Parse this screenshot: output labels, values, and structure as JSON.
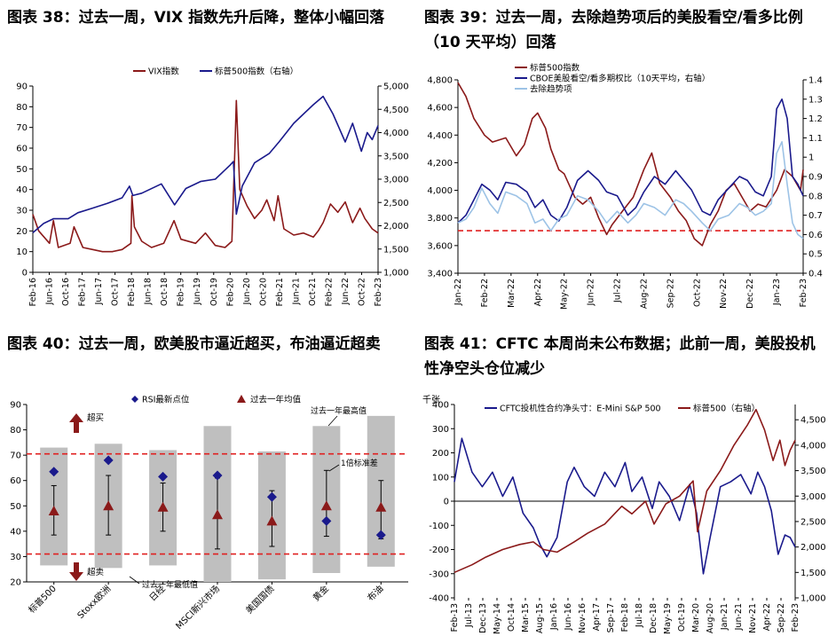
{
  "colors": {
    "red": "#8b1a1a",
    "navy": "#1a1a8c",
    "lightblue": "#9dc3e6",
    "dash": "#e02020",
    "gray": "#bfbfbf"
  },
  "panels": [
    {
      "title_lines": [
        "图表 38：过去一周，VIX 指数先升后降，整体小幅回落"
      ],
      "chart_data": {
        "type": "line",
        "legend": {
          "placement": "top-center",
          "entries": [
            "VIX指数",
            "标普500指数（右轴）"
          ]
        },
        "left_axis": {
          "ticks": [
            "0",
            "10",
            "20",
            "30",
            "40",
            "50",
            "60",
            "70",
            "80",
            "90"
          ],
          "range": [
            0,
            90
          ]
        },
        "right_axis": {
          "ticks": [
            "1,000",
            "1,500",
            "2,000",
            "2,500",
            "3,000",
            "3,500",
            "4,000",
            "4,500",
            "5,000"
          ],
          "range": [
            1000,
            5000
          ]
        },
        "x_ticks": [
          "Feb-16",
          "Jun-16",
          "Oct-16",
          "Feb-17",
          "Jun-17",
          "Oct-17",
          "Feb-18",
          "Jun-18",
          "Oct-18",
          "Feb-19",
          "Jun-19",
          "Oct-19",
          "Feb-20",
          "Jun-20",
          "Oct-20",
          "Feb-21",
          "Jun-21",
          "Oct-21",
          "Feb-22",
          "Jun-22",
          "Oct-22",
          "Feb-23"
        ],
        "x_range": [
          2016.08,
          2023.12
        ],
        "series": [
          {
            "name": "VIX指数",
            "axis": "left",
            "color": "red",
            "x": [
              2016.08,
              2016.2,
              2016.42,
              2016.5,
              2016.6,
              2016.84,
              2016.92,
              2017.1,
              2017.3,
              2017.5,
              2017.7,
              2017.9,
              2018.08,
              2018.1,
              2018.15,
              2018.3,
              2018.5,
              2018.75,
              2018.96,
              2019.1,
              2019.4,
              2019.6,
              2019.8,
              2020.0,
              2020.14,
              2020.2,
              2020.23,
              2020.3,
              2020.45,
              2020.6,
              2020.75,
              2020.85,
              2021.0,
              2021.08,
              2021.2,
              2021.4,
              2021.6,
              2021.8,
              2021.9,
              2022.0,
              2022.15,
              2022.3,
              2022.45,
              2022.6,
              2022.75,
              2022.85,
              2023.0,
              2023.12
            ],
            "y": [
              28,
              20,
              14,
              25,
              12,
              14,
              22,
              12,
              11,
              10,
              10,
              11,
              14,
              37,
              22,
              15,
              12,
              14,
              25,
              16,
              14,
              19,
              13,
              12,
              15,
              60,
              83,
              40,
              32,
              26,
              30,
              35,
              25,
              37,
              21,
              18,
              19,
              17,
              20,
              24,
              33,
              29,
              34,
              24,
              31,
              26,
              21,
              19
            ]
          },
          {
            "name": "标普500指数（右轴）",
            "axis": "right",
            "color": "navy",
            "x": [
              2016.08,
              2016.3,
              2016.5,
              2016.8,
              2017.0,
              2017.3,
              2017.6,
              2017.9,
              2018.05,
              2018.12,
              2018.3,
              2018.7,
              2018.97,
              2019.2,
              2019.5,
              2019.8,
              2020.1,
              2020.17,
              2020.23,
              2020.35,
              2020.6,
              2020.9,
              2021.1,
              2021.4,
              2021.6,
              2021.8,
              2022.0,
              2022.2,
              2022.45,
              2022.6,
              2022.78,
              2022.9,
              2023.0,
              2023.12
            ],
            "y": [
              1850,
              2050,
              2150,
              2150,
              2280,
              2380,
              2480,
              2600,
              2850,
              2650,
              2700,
              2900,
              2450,
              2800,
              2950,
              3000,
              3300,
              3380,
              2250,
              2850,
              3350,
              3550,
              3800,
              4200,
              4400,
              4600,
              4780,
              4400,
              3800,
              4200,
              3600,
              4000,
              3850,
              4150
            ]
          }
        ]
      }
    },
    {
      "title_lines": [
        "图表 39：过去一周，去除趋势项后的美股看空/看多比例",
        "（10 天平均）回落"
      ],
      "chart_data": {
        "type": "line",
        "legend": {
          "placement": "top-left",
          "entries": [
            "标普500指数",
            "CBOE美股看空/看多期权比（10天平均，右轴）",
            "去除趋势项"
          ]
        },
        "left_axis": {
          "ticks": [
            "3,400",
            "3,600",
            "3,800",
            "4,000",
            "4,200",
            "4,400",
            "4,600",
            "4,800"
          ],
          "range": [
            3400,
            4800
          ]
        },
        "right_axis": {
          "ticks": [
            "0.4",
            "0.5",
            "0.6",
            "0.7",
            "0.8",
            "0.9",
            "1",
            "1.1",
            "1.2",
            "1.3",
            "1.4"
          ],
          "range": [
            0.4,
            1.4
          ]
        },
        "x_ticks": [
          "Jan-22",
          "Feb-22",
          "Mar-22",
          "Apr-22",
          "May-22",
          "Jun-22",
          "Jul-22",
          "Aug-22",
          "Sep-22",
          "Oct-22",
          "Nov-22",
          "Dec-22",
          "Jan-23",
          "Feb-23"
        ],
        "x_range": [
          0,
          13
        ],
        "threshold": {
          "axis": "right",
          "value": 0.62
        },
        "series": [
          {
            "name": "标普500指数",
            "axis": "left",
            "color": "red",
            "x": [
              0,
              0.3,
              0.6,
              1.0,
              1.3,
              1.8,
              2.2,
              2.5,
              2.8,
              3.0,
              3.3,
              3.5,
              3.8,
              4.0,
              4.4,
              4.7,
              5.0,
              5.3,
              5.6,
              5.8,
              6.2,
              6.6,
              7.0,
              7.3,
              7.6,
              8.0,
              8.3,
              8.6,
              8.9,
              9.2,
              9.5,
              9.8,
              10.1,
              10.4,
              10.7,
              11.0,
              11.3,
              11.6,
              12.0,
              12.3,
              12.6,
              12.9,
              13.0
            ],
            "y": [
              4780,
              4680,
              4520,
              4400,
              4350,
              4380,
              4250,
              4330,
              4520,
              4560,
              4450,
              4300,
              4150,
              4120,
              3950,
              3900,
              3950,
              3800,
              3680,
              3750,
              3850,
              3950,
              4150,
              4270,
              4050,
              3950,
              3850,
              3780,
              3650,
              3600,
              3750,
              3850,
              4000,
              4050,
              3950,
              3850,
              3900,
              3880,
              4000,
              4150,
              4100,
              4000,
              4150
            ]
          },
          {
            "name": "CBOE美股看空/看多期权比（10天平均，右轴）",
            "axis": "right",
            "color": "navy",
            "x": [
              0,
              0.3,
              0.6,
              0.9,
              1.2,
              1.5,
              1.8,
              2.2,
              2.6,
              2.9,
              3.2,
              3.5,
              3.8,
              4.1,
              4.5,
              4.9,
              5.3,
              5.6,
              6.0,
              6.4,
              6.7,
              7.0,
              7.4,
              7.8,
              8.2,
              8.5,
              8.8,
              9.2,
              9.5,
              9.8,
              10.2,
              10.6,
              10.9,
              11.2,
              11.5,
              11.8,
              12.0,
              12.2,
              12.4,
              12.6,
              12.8,
              13.0
            ],
            "y": [
              0.66,
              0.7,
              0.78,
              0.86,
              0.83,
              0.78,
              0.87,
              0.86,
              0.82,
              0.74,
              0.78,
              0.7,
              0.67,
              0.74,
              0.88,
              0.93,
              0.88,
              0.82,
              0.8,
              0.7,
              0.74,
              0.82,
              0.9,
              0.86,
              0.93,
              0.88,
              0.83,
              0.72,
              0.7,
              0.78,
              0.84,
              0.9,
              0.88,
              0.82,
              0.8,
              0.9,
              1.25,
              1.3,
              1.2,
              0.9,
              0.86,
              0.8
            ]
          },
          {
            "name": "去除趋势项",
            "axis": "right",
            "color": "lightblue",
            "x": [
              0,
              0.3,
              0.6,
              0.9,
              1.2,
              1.5,
              1.8,
              2.2,
              2.6,
              2.9,
              3.2,
              3.5,
              3.8,
              4.1,
              4.5,
              4.9,
              5.3,
              5.6,
              6.0,
              6.4,
              6.7,
              7.0,
              7.4,
              7.8,
              8.2,
              8.5,
              8.8,
              9.2,
              9.5,
              9.8,
              10.2,
              10.6,
              10.9,
              11.2,
              11.5,
              11.8,
              12.0,
              12.2,
              12.4,
              12.6,
              12.8,
              13.0
            ],
            "y": [
              0.66,
              0.68,
              0.74,
              0.84,
              0.76,
              0.71,
              0.82,
              0.8,
              0.76,
              0.66,
              0.68,
              0.62,
              0.68,
              0.7,
              0.8,
              0.78,
              0.72,
              0.66,
              0.72,
              0.66,
              0.7,
              0.76,
              0.74,
              0.7,
              0.78,
              0.76,
              0.72,
              0.66,
              0.62,
              0.68,
              0.7,
              0.76,
              0.74,
              0.7,
              0.72,
              0.76,
              1.02,
              1.08,
              0.86,
              0.66,
              0.6,
              0.58
            ]
          }
        ]
      }
    },
    {
      "title_lines": [
        "图表 40：过去一周，欧美股市逼近超买，布油逼近超卖"
      ],
      "chart_data": {
        "type": "range-dot",
        "legend": {
          "placement": "top-center",
          "entries": [
            "RSI最新点位",
            "过去一年均值"
          ]
        },
        "left_axis": {
          "ticks": [
            "20",
            "30",
            "40",
            "50",
            "60",
            "70",
            "80",
            "90"
          ],
          "range": [
            20,
            90
          ]
        },
        "categories": [
          "标普500",
          "Stoxx欧洲",
          "日经",
          "MSCI新兴市场",
          "美国国债",
          "黄金",
          "布油"
        ],
        "bands": [
          [
            26.5,
            73
          ],
          [
            25.5,
            74.5
          ],
          [
            26.5,
            72
          ],
          [
            20,
            81.5
          ],
          [
            21,
            71.5
          ],
          [
            23.5,
            81.5
          ],
          [
            26,
            85.5
          ]
        ],
        "rsi_latest": [
          63.5,
          68,
          61.5,
          62,
          53.5,
          44,
          38.5
        ],
        "year_avg": [
          48,
          50,
          49.5,
          46.5,
          44,
          50,
          49.5
        ],
        "std_low": [
          38.5,
          38.5,
          40,
          33,
          34,
          38,
          37
        ],
        "std_high": [
          58,
          62,
          59,
          61,
          56,
          64,
          60
        ],
        "thresholds": [
          70.5,
          31
        ],
        "annotations": {
          "overbought": "超买",
          "oversold": "超卖",
          "year_high": "过去一年最高值",
          "year_low": "过去一年最低值",
          "std": "1倍标准差"
        }
      }
    },
    {
      "title_lines": [
        "图表 41：CFTC 本周尚未公布数据；此前一周，美股投机",
        "性净空头仓位减少"
      ],
      "chart_data": {
        "type": "line",
        "legend": {
          "placement": "top-center",
          "entries": [
            "CFTC投机性合约净头寸：E-Mini S&P 500",
            "标普500（右轴）"
          ]
        },
        "left_axis": {
          "unit": "千张",
          "ticks": [
            "-400",
            "-300",
            "-200",
            "-100",
            "0",
            "100",
            "200",
            "300",
            "400"
          ],
          "range": [
            -400,
            400
          ]
        },
        "right_axis": {
          "ticks": [
            "1,000",
            "1,500",
            "2,000",
            "2,500",
            "3,000",
            "3,500",
            "4,000",
            "4,500"
          ],
          "range": [
            1000,
            4800
          ]
        },
        "x_ticks": [
          "Feb-13",
          "Jul-13",
          "Dec-13",
          "May-14",
          "Oct-14",
          "Mar-15",
          "Aug-15",
          "Jan-16",
          "Jun-16",
          "Nov-16",
          "Apr-17",
          "Sep-17",
          "Feb-18",
          "Jul-18",
          "Dec-18",
          "May-19",
          "Oct-19",
          "Mar-20",
          "Aug-20",
          "Jan-21",
          "Jun-21",
          "Nov-21",
          "Apr-22",
          "Sep-22",
          "Feb-23"
        ],
        "x_range": [
          2013.08,
          2023.1
        ],
        "series": [
          {
            "name": "CFTC投机性合约净头寸：E-Mini S&P 500",
            "axis": "left",
            "color": "navy",
            "x": [
              2013.08,
              2013.3,
              2013.6,
              2013.9,
              2014.2,
              2014.5,
              2014.8,
              2015.1,
              2015.4,
              2015.6,
              2015.8,
              2016.1,
              2016.4,
              2016.6,
              2016.9,
              2017.2,
              2017.5,
              2017.8,
              2018.1,
              2018.3,
              2018.6,
              2018.9,
              2019.1,
              2019.4,
              2019.7,
              2020.0,
              2020.2,
              2020.4,
              2020.6,
              2020.9,
              2021.2,
              2021.5,
              2021.8,
              2022.0,
              2022.2,
              2022.4,
              2022.6,
              2022.8,
              2022.95,
              2023.1
            ],
            "y": [
              80,
              260,
              120,
              60,
              120,
              20,
              100,
              -50,
              -110,
              -180,
              -230,
              -150,
              80,
              140,
              60,
              20,
              120,
              60,
              160,
              40,
              100,
              -30,
              80,
              20,
              -80,
              70,
              -50,
              -300,
              -150,
              60,
              80,
              110,
              30,
              120,
              60,
              -40,
              -220,
              -140,
              -150,
              -190
            ]
          },
          {
            "name": "标普500（右轴）",
            "axis": "right",
            "color": "red",
            "x": [
              2013.08,
              2013.6,
              2014.0,
              2014.5,
              2015.0,
              2015.4,
              2015.7,
              2016.1,
              2016.6,
              2017.0,
              2017.5,
              2018.0,
              2018.3,
              2018.7,
              2018.95,
              2019.3,
              2019.7,
              2020.1,
              2020.23,
              2020.5,
              2020.9,
              2021.3,
              2021.7,
              2021.95,
              2022.2,
              2022.45,
              2022.65,
              2022.8,
              2022.95,
              2023.1
            ],
            "y": [
              1500,
              1650,
              1800,
              1950,
              2050,
              2100,
              1950,
              1900,
              2100,
              2270,
              2450,
              2800,
              2650,
              2900,
              2450,
              2850,
              3000,
              3300,
              2300,
              3100,
              3500,
              4000,
              4400,
              4700,
              4300,
              3700,
              4100,
              3600,
              3900,
              4100
            ]
          }
        ]
      }
    }
  ]
}
